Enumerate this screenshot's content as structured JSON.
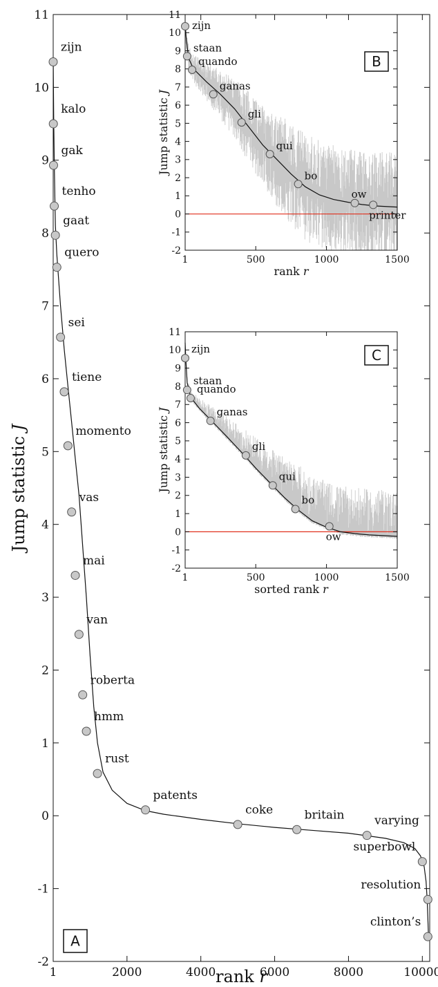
{
  "chart_data": [
    {
      "panel": "A",
      "type": "scatter",
      "xlabel": "rank r",
      "ylabel": "Jump statistic J",
      "xlim": [
        1,
        10200
      ],
      "ylim": [
        -2,
        11
      ],
      "xticks": [
        1,
        2000,
        4000,
        6000,
        8000,
        10000
      ],
      "xtick_labels": [
        "1",
        "2000",
        "4000",
        "6000",
        "8000",
        "10000"
      ],
      "yticks": [
        -2,
        -1,
        0,
        1,
        2,
        3,
        4,
        5,
        6,
        7,
        8,
        9,
        10,
        11
      ],
      "ytick_labels": [
        "-2",
        "-1",
        "0",
        "1",
        "2",
        "3",
        "4",
        "5",
        "6",
        "7",
        "8",
        "9",
        "10",
        "11"
      ],
      "curve": [
        [
          1,
          10.4
        ],
        [
          15,
          9.6
        ],
        [
          30,
          9.0
        ],
        [
          45,
          8.5
        ],
        [
          60,
          8.1
        ],
        [
          100,
          7.7
        ],
        [
          200,
          7.0
        ],
        [
          300,
          6.4
        ],
        [
          400,
          5.9
        ],
        [
          500,
          5.4
        ],
        [
          600,
          4.9
        ],
        [
          700,
          4.4
        ],
        [
          800,
          3.7
        ],
        [
          900,
          3.0
        ],
        [
          1000,
          2.2
        ],
        [
          1100,
          1.5
        ],
        [
          1200,
          1.0
        ],
        [
          1350,
          0.6
        ],
        [
          1600,
          0.35
        ],
        [
          2000,
          0.17
        ],
        [
          2500,
          0.07
        ],
        [
          3000,
          0.02
        ],
        [
          4000,
          -0.05
        ],
        [
          5000,
          -0.11
        ],
        [
          6000,
          -0.16
        ],
        [
          7000,
          -0.2
        ],
        [
          8000,
          -0.24
        ],
        [
          9000,
          -0.31
        ],
        [
          9500,
          -0.37
        ],
        [
          9800,
          -0.45
        ],
        [
          9950,
          -0.55
        ],
        [
          10050,
          -0.7
        ],
        [
          10100,
          -0.9
        ],
        [
          10130,
          -1.15
        ],
        [
          10150,
          -1.4
        ],
        [
          10170,
          -1.7
        ]
      ],
      "points": [
        {
          "label": "zijn",
          "x": 1,
          "y": 10.35
        },
        {
          "label": "kalo",
          "x": 5,
          "y": 9.5
        },
        {
          "label": "gak",
          "x": 10,
          "y": 8.93
        },
        {
          "label": "tenho",
          "x": 30,
          "y": 8.37
        },
        {
          "label": "gaat",
          "x": 60,
          "y": 7.97
        },
        {
          "label": "quero",
          "x": 100,
          "y": 7.53
        },
        {
          "label": "sei",
          "x": 200,
          "y": 6.57
        },
        {
          "label": "tiene",
          "x": 300,
          "y": 5.82
        },
        {
          "label": "momento",
          "x": 400,
          "y": 5.08
        },
        {
          "label": "vas",
          "x": 500,
          "y": 4.17
        },
        {
          "label": "mai",
          "x": 600,
          "y": 3.3
        },
        {
          "label": "van",
          "x": 700,
          "y": 2.49
        },
        {
          "label": "roberta",
          "x": 800,
          "y": 1.66
        },
        {
          "label": "hmm",
          "x": 900,
          "y": 1.16
        },
        {
          "label": "rust",
          "x": 1200,
          "y": 0.58
        },
        {
          "label": "patents",
          "x": 2500,
          "y": 0.08
        },
        {
          "label": "coke",
          "x": 5000,
          "y": -0.12
        },
        {
          "label": "britain",
          "x": 6600,
          "y": -0.19
        },
        {
          "label": "varying",
          "x": 8500,
          "y": -0.27
        },
        {
          "label": "superbowl",
          "x": 10000,
          "y": -0.63
        },
        {
          "label": "resolution",
          "x": 10150,
          "y": -1.15
        },
        {
          "label": "clinton’s",
          "x": 10150,
          "y": -1.66
        }
      ]
    },
    {
      "panel": "B",
      "type": "line",
      "xlabel": "rank r",
      "ylabel": "Jump statistic J",
      "xlim": [
        1,
        1500
      ],
      "ylim": [
        -2,
        11
      ],
      "xticks": [
        1,
        500,
        1000,
        1500
      ],
      "xtick_labels": [
        "1",
        "500",
        "1000",
        "1500"
      ],
      "yticks": [
        -2,
        -1,
        0,
        1,
        2,
        3,
        4,
        5,
        6,
        7,
        8,
        9,
        10,
        11
      ],
      "ytick_labels": [
        "-2",
        "-1",
        "0",
        "1",
        "2",
        "3",
        "4",
        "5",
        "6",
        "7",
        "8",
        "9",
        "10",
        "11"
      ],
      "reference_line": {
        "y": 0,
        "color": "#e0301e"
      },
      "noisy_band_color": "#c8c8c8",
      "curve": [
        [
          1,
          10.4
        ],
        [
          10,
          9.6
        ],
        [
          25,
          8.6
        ],
        [
          60,
          8.0
        ],
        [
          150,
          7.3
        ],
        [
          250,
          6.6
        ],
        [
          350,
          5.8
        ],
        [
          450,
          4.8
        ],
        [
          550,
          3.8
        ],
        [
          650,
          3.0
        ],
        [
          750,
          2.2
        ],
        [
          850,
          1.5
        ],
        [
          950,
          1.05
        ],
        [
          1050,
          0.8
        ],
        [
          1150,
          0.65
        ],
        [
          1250,
          0.52
        ],
        [
          1350,
          0.44
        ],
        [
          1500,
          0.38
        ]
      ],
      "points": [
        {
          "label": "zijn",
          "x": 1,
          "y": 10.35
        },
        {
          "label": "staan",
          "x": 15,
          "y": 8.7
        },
        {
          "label": "quando",
          "x": 50,
          "y": 7.95
        },
        {
          "label": "ganas",
          "x": 200,
          "y": 6.6
        },
        {
          "label": "gli",
          "x": 400,
          "y": 5.05
        },
        {
          "label": "qui",
          "x": 600,
          "y": 3.3
        },
        {
          "label": "bo",
          "x": 800,
          "y": 1.65
        },
        {
          "label": "ow",
          "x": 1200,
          "y": 0.6
        },
        {
          "label": "printer",
          "x": 1330,
          "y": 0.5
        }
      ]
    },
    {
      "panel": "C",
      "type": "line",
      "xlabel": "sorted rank r",
      "ylabel": "Jump statistic J",
      "xlim": [
        1,
        1500
      ],
      "ylim": [
        -2,
        11
      ],
      "xticks": [
        1,
        500,
        1000,
        1500
      ],
      "xtick_labels": [
        "1",
        "500",
        "1000",
        "1500"
      ],
      "yticks": [
        -2,
        -1,
        0,
        1,
        2,
        3,
        4,
        5,
        6,
        7,
        8,
        9,
        10,
        11
      ],
      "ytick_labels": [
        "-2",
        "-1",
        "0",
        "1",
        "2",
        "3",
        "4",
        "5",
        "6",
        "7",
        "8",
        "9",
        "10",
        "11"
      ],
      "reference_line": {
        "y": 0,
        "color": "#e0301e"
      },
      "noisy_band_color": "#c8c8c8",
      "curve": [
        [
          1,
          10.4
        ],
        [
          5,
          9.6
        ],
        [
          15,
          8.2
        ],
        [
          40,
          7.4
        ],
        [
          100,
          6.8
        ],
        [
          200,
          6.0
        ],
        [
          300,
          5.2
        ],
        [
          420,
          4.2
        ],
        [
          500,
          3.5
        ],
        [
          600,
          2.7
        ],
        [
          700,
          1.9
        ],
        [
          800,
          1.2
        ],
        [
          900,
          0.6
        ],
        [
          1000,
          0.25
        ],
        [
          1100,
          0.0
        ],
        [
          1200,
          -0.1
        ],
        [
          1300,
          -0.17
        ],
        [
          1500,
          -0.25
        ]
      ],
      "points": [
        {
          "label": "zijn",
          "x": 1,
          "y": 9.55
        },
        {
          "label": "staan",
          "x": 15,
          "y": 7.8
        },
        {
          "label": "quando",
          "x": 40,
          "y": 7.35
        },
        {
          "label": "ganas",
          "x": 180,
          "y": 6.1
        },
        {
          "label": "gli",
          "x": 430,
          "y": 4.2
        },
        {
          "label": "qui",
          "x": 620,
          "y": 2.55
        },
        {
          "label": "bo",
          "x": 780,
          "y": 1.25
        },
        {
          "label": "ow",
          "x": 1020,
          "y": 0.3
        }
      ]
    }
  ]
}
